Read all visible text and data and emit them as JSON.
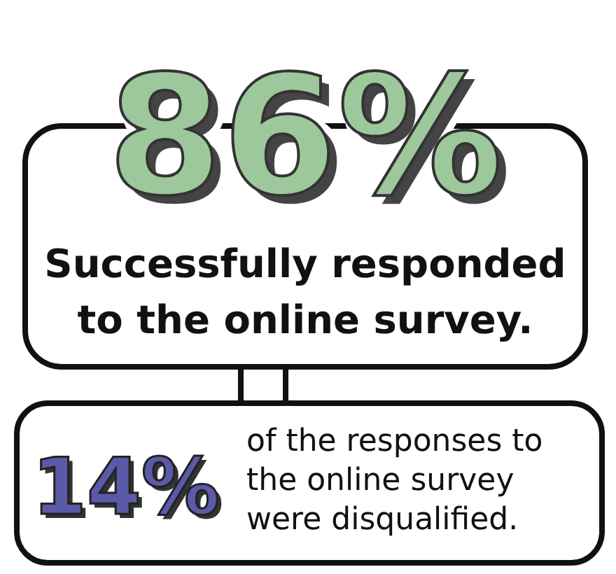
{
  "chart_data": {
    "type": "other",
    "categories": [
      "Successfully responded to the online survey.",
      "of the responses to the online survey were disqualified."
    ],
    "values": [
      86,
      14
    ],
    "value_labels": [
      "86%",
      "14%"
    ],
    "colors": [
      "#9dc89c",
      "#5b5aa8"
    ]
  }
}
